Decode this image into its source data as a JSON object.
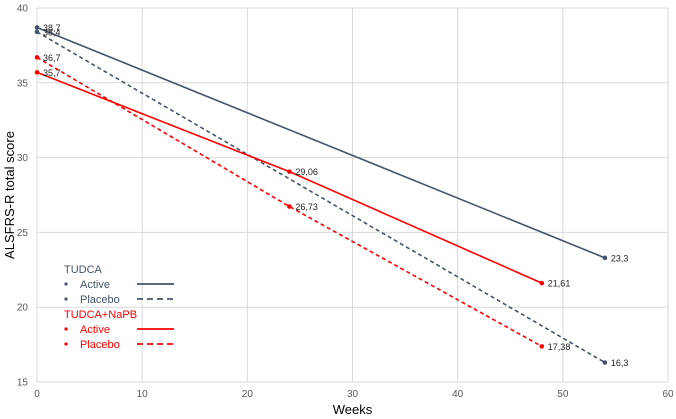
{
  "chart_data": {
    "type": "line",
    "xlabel": "Weeks",
    "ylabel": "ALSFRS-R total score",
    "xlim": [
      0,
      60
    ],
    "ylim": [
      15,
      40
    ],
    "xticks": [
      0,
      10,
      20,
      30,
      40,
      50,
      60
    ],
    "yticks": [
      15,
      20,
      25,
      30,
      35,
      40
    ],
    "grid": true,
    "legend_position": "bottom-left",
    "legend": [
      {
        "group": "TUDCA",
        "color": "#44546A",
        "entries": [
          {
            "label": "Active",
            "line_style": "solid"
          },
          {
            "label": "Placebo",
            "line_style": "dashed"
          }
        ]
      },
      {
        "group": "TUDCA+NaPB",
        "color": "#FF0000",
        "entries": [
          {
            "label": "Active",
            "line_style": "solid"
          },
          {
            "label": "Placebo",
            "line_style": "dashed"
          }
        ]
      }
    ],
    "series": [
      {
        "group": "TUDCA",
        "arm": "Active",
        "color": "#44546A",
        "line_style": "solid",
        "points": [
          {
            "x": 0,
            "y": 38.7,
            "label": "38,7"
          },
          {
            "x": 54,
            "y": 23.3,
            "label": "23,3"
          }
        ]
      },
      {
        "group": "TUDCA",
        "arm": "Placebo",
        "color": "#44546A",
        "line_style": "dashed",
        "points": [
          {
            "x": 0,
            "y": 38.4,
            "label": "38,4"
          },
          {
            "x": 54,
            "y": 16.3,
            "label": "16,3"
          }
        ]
      },
      {
        "group": "TUDCA+NaPB",
        "arm": "Active",
        "color": "#FF0000",
        "line_style": "solid",
        "points": [
          {
            "x": 0,
            "y": 35.7,
            "label": "35,7"
          },
          {
            "x": 24,
            "y": 29.06,
            "label": "29,06"
          },
          {
            "x": 48,
            "y": 21.61,
            "label": "21,61"
          }
        ]
      },
      {
        "group": "TUDCA+NaPB",
        "arm": "Placebo",
        "color": "#FF0000",
        "line_style": "dashed",
        "points": [
          {
            "x": 0,
            "y": 36.7,
            "label": "36,7"
          },
          {
            "x": 24,
            "y": 26.73,
            "label": "26,73"
          },
          {
            "x": 48,
            "y": 17.38,
            "label": "17,38"
          }
        ]
      }
    ]
  }
}
